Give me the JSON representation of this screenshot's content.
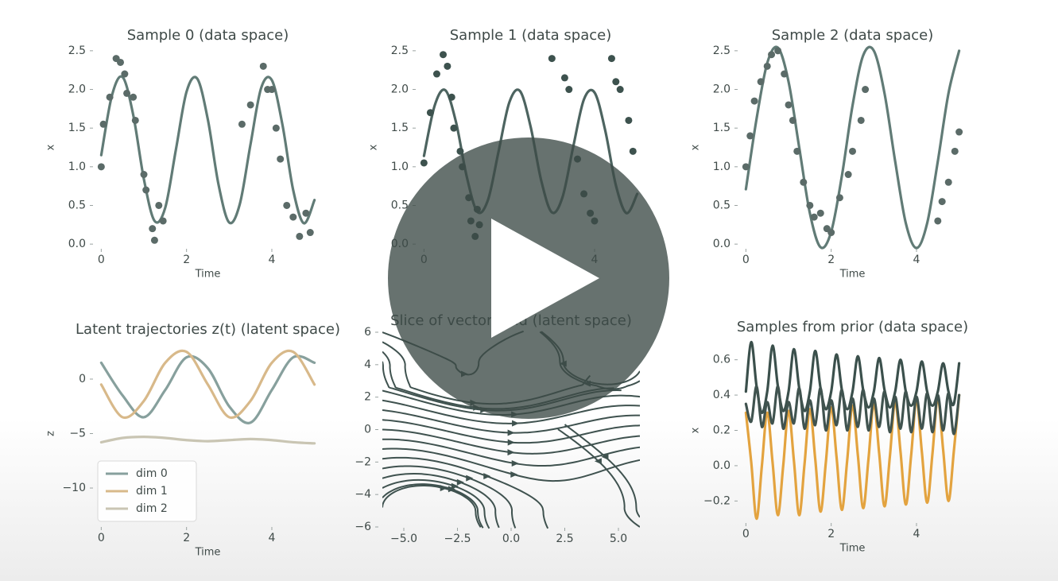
{
  "chart_data": [
    {
      "type": "line",
      "title": "Sample 0 (data space)",
      "xlabel": "Time",
      "ylabel": "x",
      "xlim": [
        -0.1,
        5.1
      ],
      "ylim": [
        -0.05,
        2.55
      ],
      "xticks": [
        0,
        2,
        4
      ],
      "yticks": [
        {
          "value": 0,
          "label": "0.0"
        },
        {
          "value": 0.5,
          "label": "0.5"
        },
        {
          "value": 1,
          "label": "1.0"
        },
        {
          "value": 1.5,
          "label": "1.5"
        },
        {
          "value": 2,
          "label": "2.0"
        },
        {
          "value": 2.5,
          "label": "2.5"
        }
      ],
      "x": [
        0,
        0.25,
        0.5,
        0.75,
        1,
        1.25,
        1.5,
        1.75,
        2,
        2.25,
        2.5,
        2.75,
        3,
        3.25,
        3.5,
        3.75,
        4,
        4.25,
        4.5,
        4.75,
        5
      ],
      "series": [
        {
          "color": "#617b76",
          "values": [
            1.15,
            1.92,
            2.16,
            1.67,
            0.84,
            0.3,
            0.47,
            1.22,
            1.97,
            2.14,
            1.61,
            0.77,
            0.28,
            0.52,
            1.29,
            2.02,
            2.12,
            1.54,
            0.7,
            0.27,
            0.57
          ]
        }
      ],
      "observations": {
        "color": "#5b6b68",
        "x": [
          0,
          0.05,
          0.2,
          0.35,
          0.45,
          0.55,
          0.6,
          0.75,
          0.8,
          1.0,
          1.05,
          1.2,
          1.25,
          1.35,
          1.45,
          3.3,
          3.5,
          3.8,
          3.9,
          4.0,
          4.1,
          4.2,
          4.35,
          4.5,
          4.65,
          4.8,
          4.9
        ],
        "values": [
          1.0,
          1.55,
          1.9,
          2.4,
          2.35,
          2.2,
          1.95,
          1.9,
          1.6,
          0.9,
          0.7,
          0.2,
          0.05,
          0.5,
          0.3,
          1.55,
          1.8,
          2.3,
          2.0,
          2.0,
          1.5,
          1.1,
          0.5,
          0.35,
          0.1,
          0.4,
          0.15
        ]
      }
    },
    {
      "type": "line",
      "title": "Sample 1 (data space)",
      "xlabel": "Time",
      "ylabel": "x",
      "xlim": [
        -0.1,
        5.1
      ],
      "ylim": [
        -0.05,
        2.55
      ],
      "xticks": [
        0,
        2,
        4
      ],
      "yticks": [
        {
          "value": 0,
          "label": "0.0"
        },
        {
          "value": 0.5,
          "label": "0.5"
        },
        {
          "value": 1,
          "label": "1.0"
        },
        {
          "value": 1.5,
          "label": "1.5"
        },
        {
          "value": 2,
          "label": "2.0"
        },
        {
          "value": 2.5,
          "label": "2.5"
        }
      ],
      "x": [
        0,
        0.25,
        0.5,
        0.75,
        1,
        1.25,
        1.5,
        1.75,
        2,
        2.25,
        2.5,
        2.75,
        3,
        3.25,
        3.5,
        3.75,
        4,
        4.25,
        4.5,
        4.75,
        5
      ],
      "series": [
        {
          "color": "#4d6460",
          "values": [
            1.14,
            1.79,
            1.99,
            1.58,
            0.88,
            0.42,
            0.57,
            1.2,
            1.83,
            1.98,
            1.52,
            0.82,
            0.41,
            0.61,
            1.26,
            1.87,
            1.96,
            1.47,
            0.76,
            0.4,
            0.65
          ]
        }
      ],
      "observations": {
        "color": "#3d524e",
        "x": [
          0,
          0.15,
          0.3,
          0.45,
          0.55,
          0.65,
          0.7,
          0.85,
          0.9,
          1.05,
          1.1,
          1.2,
          1.25,
          1.3,
          3.0,
          3.3,
          3.4,
          3.6,
          3.75,
          3.9,
          4.0,
          4.4,
          4.5,
          4.6,
          4.8,
          4.9
        ],
        "values": [
          1.05,
          1.7,
          2.2,
          2.45,
          2.3,
          1.9,
          1.5,
          1.2,
          1.0,
          0.6,
          0.3,
          0.1,
          0.45,
          0.25,
          2.4,
          2.15,
          2.0,
          1.1,
          0.65,
          0.4,
          0.3,
          2.4,
          2.1,
          2.0,
          1.6,
          1.2
        ]
      }
    },
    {
      "type": "line",
      "title": "Sample 2 (data space)",
      "xlabel": "Time",
      "ylabel": "x",
      "xlim": [
        -0.1,
        5.1
      ],
      "ylim": [
        -0.05,
        2.55
      ],
      "xticks": [
        0,
        2,
        4
      ],
      "yticks": [
        {
          "value": 0,
          "label": "0.0"
        },
        {
          "value": 0.5,
          "label": "0.5"
        },
        {
          "value": 1,
          "label": "1.0"
        },
        {
          "value": 1.5,
          "label": "1.5"
        },
        {
          "value": 2,
          "label": "2.0"
        },
        {
          "value": 2.5,
          "label": "2.5"
        }
      ],
      "x": [
        0,
        0.25,
        0.5,
        0.75,
        1,
        1.25,
        1.5,
        1.75,
        2,
        2.25,
        2.5,
        2.75,
        3,
        3.25,
        3.5,
        3.75,
        4,
        4.25,
        4.5,
        4.75,
        5
      ],
      "series": [
        {
          "color": "#617b76",
          "values": [
            0.71,
            1.62,
            2.34,
            2.54,
            2.1,
            1.25,
            0.4,
            -0.04,
            0.16,
            0.88,
            1.79,
            2.44,
            2.5,
            1.95,
            1.07,
            0.27,
            -0.05,
            0.27,
            1.07,
            1.95,
            2.5
          ]
        }
      ],
      "observations": {
        "color": "#5b6b68",
        "x": [
          0,
          0.1,
          0.2,
          0.35,
          0.5,
          0.6,
          0.75,
          0.9,
          1.0,
          1.1,
          1.2,
          1.35,
          1.5,
          1.6,
          1.75,
          1.9,
          2.0,
          2.2,
          2.4,
          2.5,
          2.7,
          2.8,
          4.5,
          4.6,
          4.75,
          4.9,
          5.0
        ],
        "values": [
          1.0,
          1.4,
          1.85,
          2.1,
          2.3,
          2.45,
          2.5,
          2.2,
          1.8,
          1.6,
          1.2,
          0.8,
          0.5,
          0.35,
          0.4,
          0.2,
          0.15,
          0.6,
          0.9,
          1.2,
          1.6,
          2.0,
          0.3,
          0.55,
          0.8,
          1.2,
          1.45
        ]
      }
    },
    {
      "type": "line",
      "title": "Latent trajectories z(t) (latent space)",
      "xlabel": "Time",
      "ylabel": "z",
      "xlim": [
        -0.1,
        5.1
      ],
      "ylim": [
        -13.5,
        3.5
      ],
      "xticks": [
        0,
        2,
        4
      ],
      "yticks": [
        {
          "value": -10,
          "label": "−10"
        },
        {
          "value": -5,
          "label": "−5"
        },
        0
      ],
      "legend": "lower left",
      "x": [
        0,
        0.5,
        1,
        1.5,
        2,
        2.5,
        3,
        3.5,
        4,
        4.5,
        5
      ],
      "series": [
        {
          "name": "dim 0",
          "color": "#87a09d",
          "values": [
            1.5,
            -1.5,
            -3.5,
            -1.0,
            2.0,
            1.0,
            -2.5,
            -4.0,
            -1.0,
            2.0,
            1.5
          ]
        },
        {
          "name": "dim 1",
          "color": "#d8b98a",
          "values": [
            -0.5,
            -3.5,
            -2.0,
            1.5,
            2.5,
            -0.5,
            -3.5,
            -2.0,
            1.5,
            2.5,
            -0.5
          ]
        },
        {
          "name": "dim 2",
          "color": "#c9c5b3",
          "values": [
            -5.8,
            -5.4,
            -5.3,
            -5.4,
            -5.6,
            -5.7,
            -5.6,
            -5.5,
            -5.6,
            -5.8,
            -5.9
          ]
        }
      ]
    },
    {
      "type": "streamplot",
      "title": "Slice of vector field (latent space)",
      "xlim": [
        -6,
        6
      ],
      "ylim": [
        -6,
        6
      ],
      "xticks": [
        {
          "value": -5,
          "label": "−5.0"
        },
        {
          "value": -2.5,
          "label": "−2.5"
        },
        {
          "value": 0,
          "label": "0.0"
        },
        {
          "value": 2.5,
          "label": "2.5"
        },
        {
          "value": 5,
          "label": "5.0"
        }
      ],
      "yticks": [
        {
          "value": -6,
          "label": "−6"
        },
        {
          "value": -4,
          "label": "−4"
        },
        {
          "value": -2,
          "label": "−2"
        },
        0,
        2,
        4,
        6
      ],
      "color": "#3f524f"
    },
    {
      "type": "line",
      "title": "Samples from prior (data space)",
      "xlabel": "Time",
      "ylabel": "x",
      "xlim": [
        -0.1,
        5.1
      ],
      "ylim": [
        -0.32,
        0.72
      ],
      "xticks": [
        0,
        2,
        4
      ],
      "yticks": [
        {
          "value": -0.2,
          "label": "−0.2"
        },
        {
          "value": 0,
          "label": "0.0"
        },
        {
          "value": 0.2,
          "label": "0.2"
        },
        {
          "value": 0.4,
          "label": "0.4"
        },
        {
          "value": 0.6,
          "label": "0.6"
        }
      ],
      "x": [
        0,
        0.125,
        0.25,
        0.375,
        0.5,
        0.625,
        0.75,
        0.875,
        1,
        1.125,
        1.25,
        1.375,
        1.5,
        1.625,
        1.75,
        1.875,
        2,
        2.125,
        2.25,
        2.375,
        2.5,
        2.625,
        2.75,
        2.875,
        3,
        3.125,
        3.25,
        3.375,
        3.5,
        3.625,
        3.75,
        3.875,
        4,
        4.125,
        4.25,
        4.375,
        4.5,
        4.625,
        4.75,
        4.875,
        5
      ],
      "series": [
        {
          "color": "#e3a33f",
          "values": [
            0.3,
            0.02,
            -0.3,
            0.0,
            0.3,
            0.02,
            -0.28,
            0.0,
            0.31,
            0.03,
            -0.28,
            0.01,
            0.32,
            0.04,
            -0.26,
            0.02,
            0.33,
            0.05,
            -0.25,
            0.03,
            0.34,
            0.06,
            -0.24,
            0.04,
            0.35,
            0.07,
            -0.23,
            0.05,
            0.36,
            0.08,
            -0.22,
            0.06,
            0.37,
            0.08,
            -0.21,
            0.07,
            0.38,
            0.09,
            -0.2,
            0.08,
            0.4
          ]
        },
        {
          "color": "#3b504c",
          "values": [
            0.42,
            0.7,
            0.45,
            0.3,
            0.42,
            0.68,
            0.45,
            0.31,
            0.42,
            0.66,
            0.44,
            0.31,
            0.42,
            0.65,
            0.44,
            0.32,
            0.42,
            0.63,
            0.43,
            0.32,
            0.42,
            0.62,
            0.43,
            0.33,
            0.42,
            0.61,
            0.43,
            0.33,
            0.42,
            0.6,
            0.42,
            0.34,
            0.42,
            0.59,
            0.42,
            0.34,
            0.42,
            0.58,
            0.42,
            0.35,
            0.58
          ]
        },
        {
          "color": "#40534f",
          "values": [
            0.35,
            0.25,
            0.45,
            0.22,
            0.36,
            0.24,
            0.45,
            0.21,
            0.36,
            0.24,
            0.44,
            0.21,
            0.37,
            0.23,
            0.44,
            0.2,
            0.37,
            0.23,
            0.43,
            0.2,
            0.38,
            0.22,
            0.43,
            0.2,
            0.38,
            0.22,
            0.42,
            0.19,
            0.39,
            0.21,
            0.42,
            0.19,
            0.39,
            0.21,
            0.41,
            0.19,
            0.4,
            0.2,
            0.41,
            0.18,
            0.4
          ]
        }
      ]
    }
  ]
}
